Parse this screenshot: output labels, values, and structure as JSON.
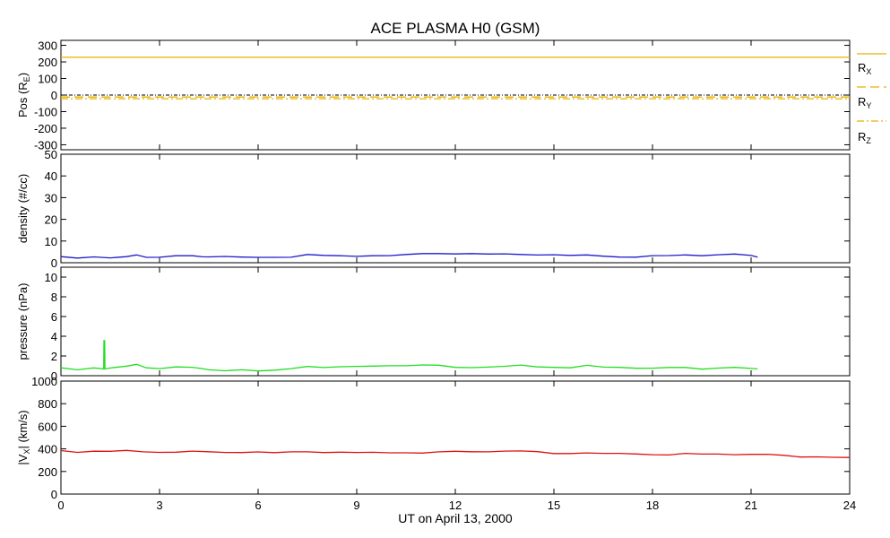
{
  "title": "ACE PLASMA H0 (GSM)",
  "xlabel": "UT on April 13, 2000",
  "x_ticks": [
    "0",
    "3",
    "6",
    "9",
    "12",
    "15",
    "18",
    "21",
    "24"
  ],
  "chart_data": [
    {
      "type": "line",
      "ylabel": "Pos (RE)",
      "ylabel_main": "Pos (R",
      "ylabel_sub": "E",
      "ylabel_end": ")",
      "xlim": [
        0,
        24
      ],
      "ylim": [
        -330,
        330
      ],
      "y_ticks": [
        300,
        200,
        100,
        0,
        -100,
        -200,
        -300
      ],
      "y_tick_labels": [
        "300",
        "200",
        "100",
        "0",
        "-100",
        "-200",
        "-300"
      ],
      "zero_line": true,
      "series": [
        {
          "name": "RX",
          "label_main": "R",
          "label_sub": "X",
          "color": "#e8b000",
          "dash": "none",
          "x": [
            0,
            24
          ],
          "y": [
            228,
            228
          ]
        },
        {
          "name": "RY",
          "label_main": "R",
          "label_sub": "Y",
          "color": "#e8b000",
          "dash": "10,5",
          "x": [
            0,
            24
          ],
          "y": [
            -12,
            -12
          ]
        },
        {
          "name": "RZ",
          "label_main": "R",
          "label_sub": "Z",
          "color": "#e8b000",
          "dash": "8,3,2,3",
          "x": [
            0,
            24
          ],
          "y": [
            -22,
            -22
          ]
        }
      ]
    },
    {
      "type": "line",
      "ylabel": "density (#/cc)",
      "xlim": [
        0,
        24
      ],
      "ylim": [
        0,
        50
      ],
      "y_ticks": [
        0,
        10,
        20,
        30,
        40,
        50
      ],
      "y_tick_labels": [
        "0",
        "10",
        "20",
        "30",
        "40",
        "50"
      ],
      "series": [
        {
          "color": "#1c1cc8",
          "x": [
            0,
            0.5,
            1,
            1.5,
            2,
            2.3,
            2.6,
            3,
            3.5,
            4,
            4.3,
            4.5,
            5,
            5.5,
            6,
            6.5,
            7,
            7.5,
            8,
            8.5,
            9,
            9.5,
            10,
            10.5,
            11,
            11.5,
            12,
            12.5,
            13,
            13.5,
            14,
            14.5,
            15,
            15.5,
            16,
            16.5,
            17,
            17.5,
            18,
            18.5,
            19,
            19.5,
            20,
            20.5,
            21,
            21.2
          ],
          "y": [
            2.8,
            2.6,
            2.7,
            2.5,
            3.0,
            3.8,
            2.8,
            2.6,
            2.9,
            3.0,
            2.7,
            2.6,
            2.5,
            2.6,
            2.4,
            2.7,
            3.0,
            4.0,
            3.7,
            3.4,
            3.3,
            3.5,
            3.6,
            3.5,
            3.8,
            3.9,
            3.8,
            3.7,
            3.6,
            3.8,
            4.3,
            3.9,
            3.8,
            3.6,
            3.7,
            3.3,
            3.1,
            3.0,
            3.0,
            3.2,
            3.4,
            3.2,
            3.4,
            3.6,
            3.2,
            3.0
          ]
        }
      ]
    },
    {
      "type": "line",
      "ylabel": "pressure (nPa)",
      "xlim": [
        0,
        24
      ],
      "ylim": [
        0,
        11
      ],
      "y_ticks": [
        0,
        2,
        4,
        6,
        8,
        10
      ],
      "y_tick_labels": [
        "0",
        "2",
        "4",
        "6",
        "8",
        "10"
      ],
      "series": [
        {
          "color": "#22dd22",
          "x": [
            0,
            0.5,
            1,
            1.3,
            1.31,
            1.33,
            1.34,
            1.5,
            2,
            2.3,
            2.6,
            3,
            3.5,
            4,
            4.3,
            4.5,
            5,
            5.5,
            6,
            6.5,
            7,
            7.5,
            8,
            8.5,
            9,
            9.5,
            10,
            10.5,
            11,
            11.5,
            12,
            12.5,
            13,
            13.5,
            14,
            14.5,
            15,
            15.5,
            16,
            16.5,
            17,
            17.5,
            18,
            18.5,
            19,
            19.5,
            20,
            20.5,
            21,
            21.2
          ],
          "y": [
            0.8,
            0.7,
            0.8,
            0.75,
            3.6,
            3.6,
            0.75,
            0.8,
            0.9,
            1.1,
            0.8,
            0.7,
            0.8,
            0.85,
            0.7,
            0.65,
            0.6,
            0.65,
            0.55,
            0.6,
            0.8,
            1.0,
            0.9,
            0.85,
            0.85,
            0.9,
            0.95,
            0.9,
            1.0,
            1.0,
            0.95,
            0.9,
            0.9,
            1.0,
            1.1,
            0.95,
            0.95,
            0.9,
            1.0,
            0.85,
            0.8,
            0.75,
            0.7,
            0.75,
            0.8,
            0.75,
            0.8,
            0.9,
            0.75,
            0.7
          ]
        }
      ]
    },
    {
      "type": "line",
      "ylabel": "|VX| (km/s)",
      "ylabel_main": "|V",
      "ylabel_sub": "X",
      "ylabel_end": "| (km/s)",
      "xlim": [
        0,
        24
      ],
      "ylim": [
        0,
        1000
      ],
      "y_ticks": [
        0,
        200,
        400,
        600,
        800,
        1000
      ],
      "y_tick_labels": [
        "0",
        "200",
        "400",
        "600",
        "800",
        "1000"
      ],
      "series": [
        {
          "color": "#dd1111",
          "x": [
            0,
            0.5,
            1,
            1.5,
            2,
            2.5,
            3,
            3.5,
            4,
            4.5,
            5,
            5.5,
            6,
            6.5,
            7,
            7.5,
            8,
            8.5,
            9,
            9.5,
            10,
            10.5,
            11,
            11.5,
            12,
            12.5,
            13,
            13.5,
            14,
            14.5,
            15,
            15.5,
            16,
            16.5,
            17,
            17.5,
            18,
            18.5,
            19,
            19.5,
            20,
            20.5,
            21,
            21.5,
            22,
            22.5,
            23,
            23.5,
            24
          ],
          "y": [
            385,
            378,
            380,
            384,
            390,
            378,
            375,
            372,
            374,
            370,
            368,
            366,
            365,
            367,
            372,
            378,
            376,
            375,
            374,
            373,
            372,
            370,
            369,
            368,
            370,
            368,
            369,
            371,
            374,
            370,
            368,
            366,
            367,
            364,
            362,
            360,
            358,
            355,
            355,
            352,
            350,
            348,
            346,
            345,
            340,
            335,
            332,
            330,
            325
          ]
        }
      ]
    }
  ]
}
